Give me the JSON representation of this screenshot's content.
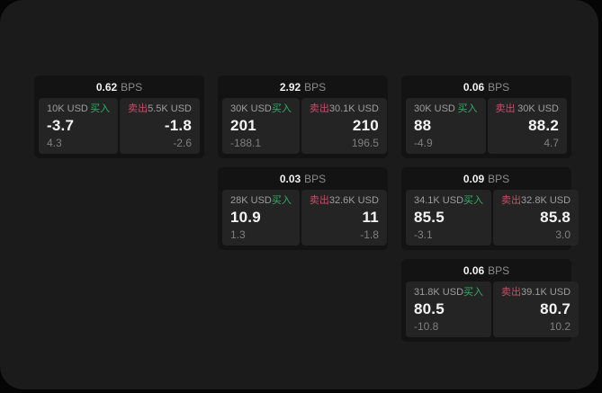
{
  "labels": {
    "bps_unit": "BPS",
    "buy": "买入",
    "sell": "卖出"
  },
  "colors": {
    "panel_background": "#1b1b1c",
    "card_background": "#131313",
    "tile_background": "#242424",
    "buy_green": "#2fae68",
    "sell_red": "#cf4a66"
  },
  "cards": [
    {
      "bps": "0.62",
      "buy": {
        "amount": "10K USD",
        "price": "-3.7",
        "change": "4.3"
      },
      "sell": {
        "amount": "5.5K USD",
        "price": "-1.8",
        "change": "-2.6"
      }
    },
    {
      "bps": "2.92",
      "buy": {
        "amount": "30K USD",
        "price": "201",
        "change": "-188.1"
      },
      "sell": {
        "amount": "30.1K USD",
        "price": "210",
        "change": "196.5"
      }
    },
    {
      "bps": "0.06",
      "buy": {
        "amount": "30K USD",
        "price": "88",
        "change": "-4.9"
      },
      "sell": {
        "amount": "30K USD",
        "price": "88.2",
        "change": "4.7"
      }
    },
    {
      "bps": "0.03",
      "buy": {
        "amount": "28K USD",
        "price": "10.9",
        "change": "1.3"
      },
      "sell": {
        "amount": "32.6K USD",
        "price": "11",
        "change": "-1.8"
      }
    },
    {
      "bps": "0.09",
      "buy": {
        "amount": "34.1K USD",
        "price": "85.5",
        "change": "-3.1"
      },
      "sell": {
        "amount": "32.8K USD",
        "price": "85.8",
        "change": "3.0"
      }
    },
    {
      "bps": "0.06",
      "buy": {
        "amount": "31.8K USD",
        "price": "80.5",
        "change": "-10.8"
      },
      "sell": {
        "amount": "39.1K USD",
        "price": "80.7",
        "change": "10.2"
      }
    }
  ]
}
